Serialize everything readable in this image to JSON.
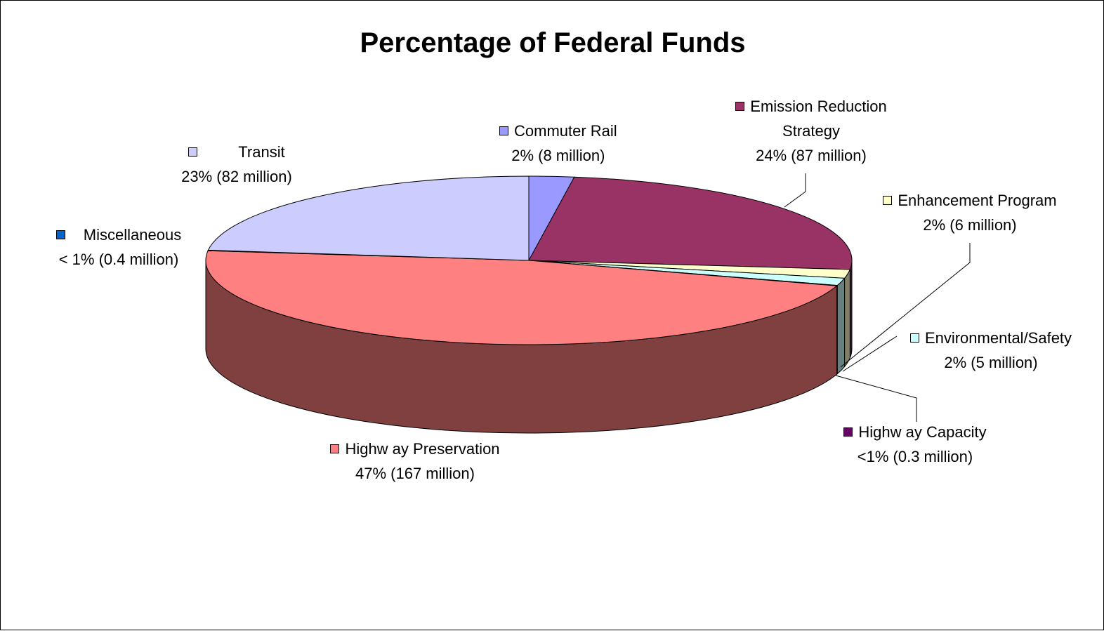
{
  "chart_data": {
    "type": "pie",
    "style": "3d",
    "title": "Percentage of Federal Funds",
    "legend": "none",
    "slices": [
      {
        "name": "Commuter Rail",
        "percent_label": "2% (8 million)",
        "value": 8,
        "color": "#9999ff"
      },
      {
        "name": "Emission Reduction Strategy",
        "name_line1": "Emission Reduction",
        "name_line2": "Strategy",
        "percent_label": "24% (87 million)",
        "value": 87,
        "color": "#993366"
      },
      {
        "name": "Enhancement Program",
        "percent_label": "2% (6 million)",
        "value": 6,
        "color": "#ffffcc"
      },
      {
        "name": "Environmental/Safety",
        "percent_label": "2% (5 million)",
        "value": 5,
        "color": "#ccffff"
      },
      {
        "name": "Highway Capacity",
        "display_name": "Highw ay Capacity",
        "percent_label": "<1% (0.3 million)",
        "value": 0.3,
        "color": "#660066"
      },
      {
        "name": "Highway Preservation",
        "display_name": "Highw ay Preservation",
        "percent_label": "47% (167 million)",
        "value": 167,
        "color": "#ff8080"
      },
      {
        "name": "Miscellaneous",
        "percent_label": "< 1% (0.4 million)",
        "value": 0.4,
        "color": "#0066cc"
      },
      {
        "name": "Transit",
        "percent_label": "23% (82 million)",
        "value": 82,
        "color": "#ccccff"
      }
    ]
  }
}
